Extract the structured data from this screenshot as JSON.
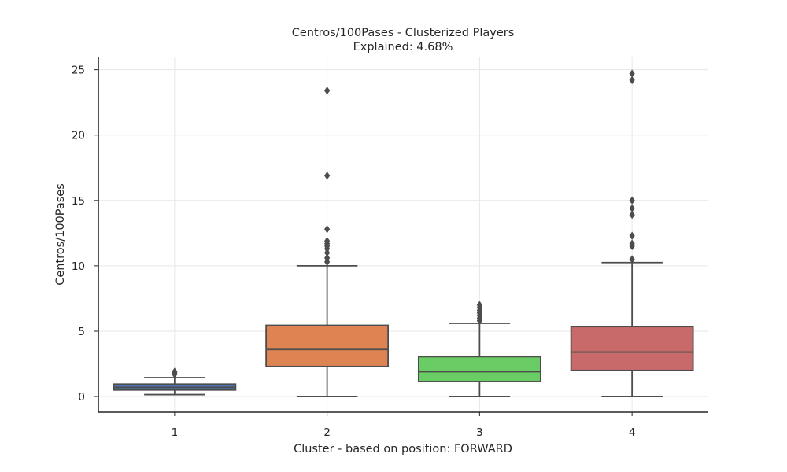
{
  "chart_data": {
    "type": "box",
    "title": "Centros/100Pases - Clusterized Players",
    "subtitle": "Explained: 4.68%",
    "xlabel": "Cluster - based on position: FORWARD",
    "ylabel": "Centros/100Pases",
    "ylim": [
      -1.2,
      26
    ],
    "yticks": [
      0,
      5,
      10,
      15,
      20,
      25
    ],
    "categories": [
      "1",
      "2",
      "3",
      "4"
    ],
    "grid": true,
    "boxes": [
      {
        "category": "1",
        "color": "#4c72b0",
        "whisker_low": 0.15,
        "q1": 0.5,
        "median": 0.7,
        "q3": 0.95,
        "whisker_high": 1.45,
        "fliers": [
          1.7,
          1.8,
          1.9
        ]
      },
      {
        "category": "2",
        "color": "#dd8452",
        "whisker_low": 0.0,
        "q1": 2.3,
        "median": 3.6,
        "q3": 5.45,
        "whisker_high": 10.0,
        "fliers": [
          10.3,
          10.6,
          11.0,
          11.3,
          11.5,
          11.7,
          11.9,
          12.8,
          16.9,
          23.4
        ]
      },
      {
        "category": "3",
        "color": "#6acc64",
        "whisker_low": 0.0,
        "q1": 1.15,
        "median": 1.9,
        "q3": 3.05,
        "whisker_high": 5.6,
        "fliers": [
          5.8,
          6.0,
          6.2,
          6.4,
          6.6,
          6.8,
          7.0
        ]
      },
      {
        "category": "4",
        "color": "#c96a6a",
        "whisker_low": 0.0,
        "q1": 2.0,
        "median": 3.4,
        "q3": 5.35,
        "whisker_high": 10.25,
        "fliers": [
          10.5,
          11.5,
          11.7,
          12.3,
          13.9,
          14.4,
          15.0,
          24.2,
          24.7
        ]
      }
    ]
  }
}
